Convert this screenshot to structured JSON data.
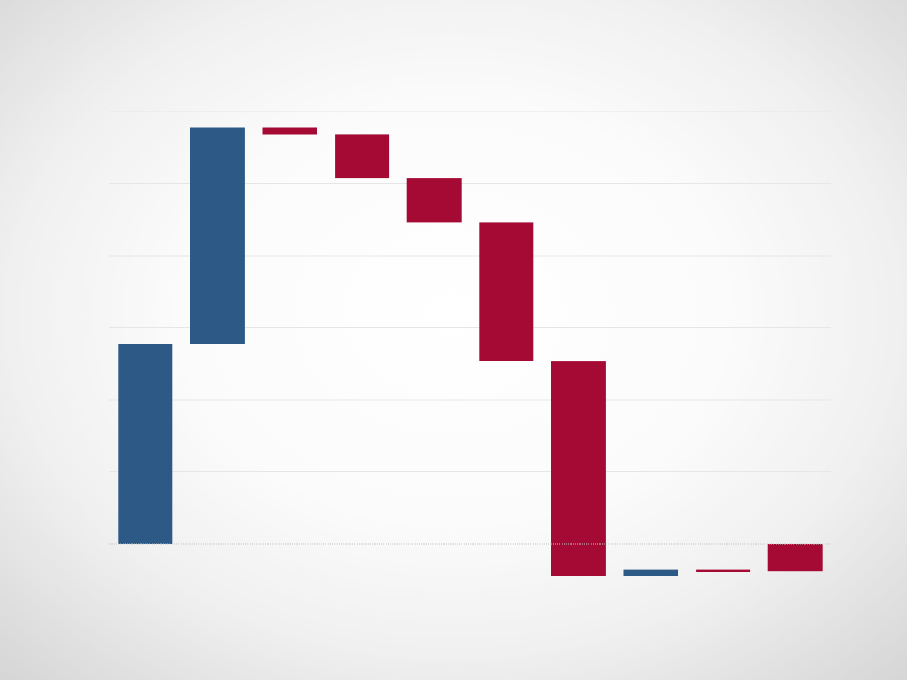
{
  "chart_data": {
    "type": "waterfall",
    "title": "",
    "xlabel": "",
    "ylabel": "",
    "ylim": [
      -30,
      300
    ],
    "yticks": [
      0,
      50,
      100,
      150,
      200,
      250,
      300
    ],
    "grid": true,
    "legend": "none",
    "colors": {
      "increase": "#2c5985",
      "decrease": "#a50a34",
      "gridline": "#e6e6e6",
      "baseline": "#c4c4c4"
    },
    "bars": [
      {
        "start": 0,
        "end": 139,
        "direction": "increase"
      },
      {
        "start": 139,
        "end": 289,
        "direction": "increase"
      },
      {
        "start": 289,
        "end": 284,
        "direction": "decrease"
      },
      {
        "start": 284,
        "end": 254,
        "direction": "decrease"
      },
      {
        "start": 254,
        "end": 223,
        "direction": "decrease"
      },
      {
        "start": 223,
        "end": 127,
        "direction": "decrease"
      },
      {
        "start": 127,
        "end": -22,
        "direction": "decrease"
      },
      {
        "start": -22,
        "end": -18,
        "direction": "increase"
      },
      {
        "start": -18,
        "end": -19.5,
        "direction": "decrease"
      },
      {
        "start": 0,
        "end": -19,
        "direction": "decrease"
      }
    ]
  }
}
